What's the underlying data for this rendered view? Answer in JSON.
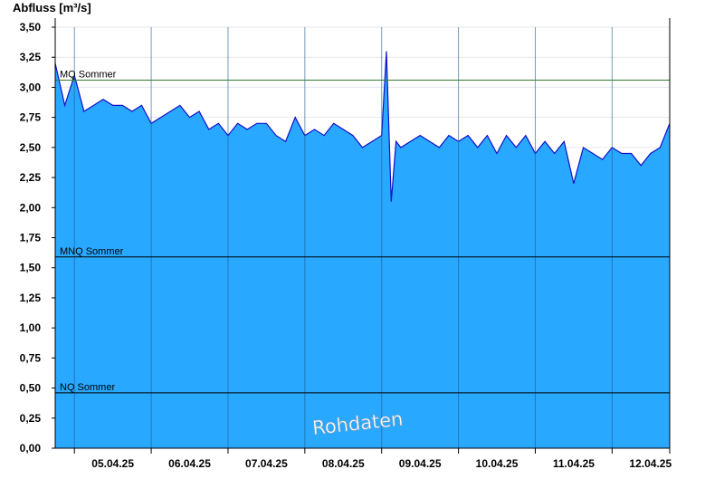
{
  "chart_data": {
    "type": "area",
    "ylabel": "Abfluss [m³/s]",
    "ylim": [
      0,
      3.5
    ],
    "ytick_step": 0.25,
    "yticks": [
      "0,00",
      "0,25",
      "0,50",
      "0,75",
      "1,00",
      "1,25",
      "1,50",
      "1,75",
      "2,00",
      "2,25",
      "2,50",
      "2,75",
      "3,00",
      "3,25",
      "3,50"
    ],
    "xticks": [
      "05.04.25",
      "06.04.25",
      "07.04.25",
      "08.04.25",
      "09.04.25",
      "10.04.25",
      "11.04.25",
      "12.04.25"
    ],
    "x_start": "04.04.25 18:00",
    "x_end": "12.04.25 18:00",
    "series": [
      {
        "x": [
          "04.04.25 18:00",
          "04.04.25 21:00",
          "05.04.25 00:00",
          "05.04.25 03:00",
          "05.04.25 06:00",
          "05.04.25 09:00",
          "05.04.25 12:00",
          "05.04.25 15:00",
          "05.04.25 18:00",
          "05.04.25 21:00",
          "06.04.25 00:00",
          "06.04.25 03:00",
          "06.04.25 06:00",
          "06.04.25 09:00",
          "06.04.25 12:00",
          "06.04.25 15:00",
          "06.04.25 18:00",
          "06.04.25 21:00",
          "07.04.25 00:00",
          "07.04.25 03:00",
          "07.04.25 06:00",
          "07.04.25 09:00",
          "07.04.25 12:00",
          "07.04.25 15:00",
          "07.04.25 18:00",
          "07.04.25 21:00",
          "08.04.25 00:00",
          "08.04.25 03:00",
          "08.04.25 06:00",
          "08.04.25 09:00",
          "08.04.25 12:00",
          "08.04.25 15:00",
          "08.04.25 18:00",
          "08.04.25 21:00",
          "09.04.25 00:00",
          "09.04.25 01:30",
          "09.04.25 03:00",
          "09.04.25 04:30",
          "09.04.25 06:00",
          "09.04.25 09:00",
          "09.04.25 12:00",
          "09.04.25 15:00",
          "09.04.25 18:00",
          "09.04.25 21:00",
          "10.04.25 00:00",
          "10.04.25 03:00",
          "10.04.25 06:00",
          "10.04.25 09:00",
          "10.04.25 12:00",
          "10.04.25 15:00",
          "10.04.25 18:00",
          "10.04.25 21:00",
          "11.04.25 00:00",
          "11.04.25 03:00",
          "11.04.25 06:00",
          "11.04.25 09:00",
          "11.04.25 12:00",
          "11.04.25 15:00",
          "11.04.25 18:00",
          "11.04.25 21:00",
          "12.04.25 00:00",
          "12.04.25 03:00",
          "12.04.25 06:00",
          "12.04.25 09:00",
          "12.04.25 12:00",
          "12.04.25 15:00",
          "12.04.25 18:00"
        ],
        "y": [
          3.2,
          2.85,
          3.1,
          2.8,
          2.85,
          2.9,
          2.85,
          2.85,
          2.8,
          2.85,
          2.7,
          2.75,
          2.8,
          2.85,
          2.75,
          2.8,
          2.65,
          2.7,
          2.6,
          2.7,
          2.65,
          2.7,
          2.7,
          2.6,
          2.55,
          2.75,
          2.6,
          2.65,
          2.6,
          2.7,
          2.65,
          2.6,
          2.5,
          2.55,
          2.6,
          3.3,
          2.05,
          2.55,
          2.5,
          2.55,
          2.6,
          2.55,
          2.5,
          2.6,
          2.55,
          2.6,
          2.5,
          2.6,
          2.45,
          2.6,
          2.5,
          2.6,
          2.45,
          2.55,
          2.45,
          2.55,
          2.2,
          2.5,
          2.45,
          2.4,
          2.5,
          2.45,
          2.45,
          2.35,
          2.45,
          2.5,
          2.7
        ]
      }
    ],
    "reference_lines": [
      {
        "label": "MQ Sommer",
        "value": 3.06,
        "color": "#2e7d32"
      },
      {
        "label": "MNQ Sommer",
        "value": 1.59,
        "color": "#000000"
      },
      {
        "label": "NQ Sommer",
        "value": 0.46,
        "color": "#000000"
      }
    ],
    "fill_color": "#29a8ff",
    "line_color": "#1010c8",
    "grid": true,
    "watermark": "Rohdaten"
  }
}
